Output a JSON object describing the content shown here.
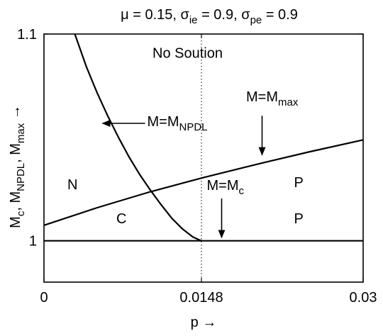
{
  "chart_data": {
    "type": "line",
    "title": {
      "parts": [
        {
          "text": "μ = 0.15, σ",
          "sub": false
        },
        {
          "text": "ie",
          "sub": true
        },
        {
          "text": " = 0.9, σ",
          "sub": false
        },
        {
          "text": "pe",
          "sub": true
        },
        {
          "text": " = 0.9",
          "sub": false
        }
      ]
    },
    "xlabel": "p →",
    "ylabel": {
      "parts": [
        {
          "text": "M",
          "sub": false
        },
        {
          "text": "c",
          "sub": true
        },
        {
          "text": ", M",
          "sub": false
        },
        {
          "text": "NPDL",
          "sub": true
        },
        {
          "text": ", M",
          "sub": false
        },
        {
          "text": "max",
          "sub": true
        },
        {
          "text": " →",
          "sub": false
        }
      ]
    },
    "xlim": [
      0,
      0.03
    ],
    "ylim": [
      0.98,
      1.1
    ],
    "xticks": [
      {
        "value": 0,
        "label": "0"
      },
      {
        "value": 0.0148,
        "label": "0.0148"
      },
      {
        "value": 0.03,
        "label": "0.03"
      }
    ],
    "yticks": [
      {
        "value": 1.0,
        "label": "1"
      },
      {
        "value": 1.1,
        "label": "1.1"
      }
    ],
    "grid": false,
    "reference_line": {
      "axis": "x",
      "value": 0.0148,
      "style": "dotted"
    },
    "series": [
      {
        "id": "M_c",
        "x": [
          0,
          0.03
        ],
        "y": [
          1.0,
          1.0
        ]
      },
      {
        "id": "M_max",
        "x": [
          0,
          0.005,
          0.01,
          0.015,
          0.02,
          0.025,
          0.03
        ],
        "y": [
          1.0075,
          1.016,
          1.0237,
          1.0306,
          1.037,
          1.0431,
          1.0488
        ]
      },
      {
        "id": "M_NPDL",
        "x": [
          0.0029,
          0.004,
          0.005,
          0.006,
          0.007,
          0.008,
          0.009,
          0.01,
          0.011,
          0.012,
          0.013,
          0.014,
          0.0148
        ],
        "y": [
          1.1,
          1.084,
          1.0715,
          1.0603,
          1.05,
          1.0405,
          1.032,
          1.0245,
          1.0175,
          1.011,
          1.0058,
          1.0018,
          1.0
        ]
      }
    ],
    "annotations": [
      {
        "id": "no-solution",
        "text": "No Soution",
        "x": 0.0135,
        "y": 1.0885
      },
      {
        "id": "region-n",
        "text": "N",
        "x": 0.0022,
        "y": 1.025
      },
      {
        "id": "region-c",
        "text": "C",
        "x": 0.0068,
        "y": 1.0085
      },
      {
        "id": "region-p-upper",
        "text": "P",
        "x": 0.0235,
        "y": 1.026
      },
      {
        "id": "region-p-lower",
        "text": "P",
        "x": 0.0235,
        "y": 1.0085
      }
    ],
    "arrow_labels": [
      {
        "id": "label-npdl",
        "parts": [
          {
            "text": "M=M",
            "sub": false
          },
          {
            "text": "NPDL",
            "sub": true
          }
        ],
        "text_x": 0.0097,
        "text_y": 1.0555,
        "arrow_from": [
          0.0095,
          1.0568
        ],
        "arrow_to": [
          0.0055,
          1.0568
        ]
      },
      {
        "id": "label-max",
        "parts": [
          {
            "text": "M=M",
            "sub": false
          },
          {
            "text": "max",
            "sub": true
          }
        ],
        "text_x": 0.019,
        "text_y": 1.0675,
        "arrow_from": [
          0.0205,
          1.0605
        ],
        "arrow_to": [
          0.0205,
          1.0415
        ]
      },
      {
        "id": "label-mc",
        "parts": [
          {
            "text": "M=M",
            "sub": false
          },
          {
            "text": "c",
            "sub": true
          }
        ],
        "text_x": 0.0153,
        "text_y": 1.0245,
        "arrow_from": [
          0.0167,
          1.0205
        ],
        "arrow_to": [
          0.0167,
          1.0015
        ]
      }
    ]
  }
}
